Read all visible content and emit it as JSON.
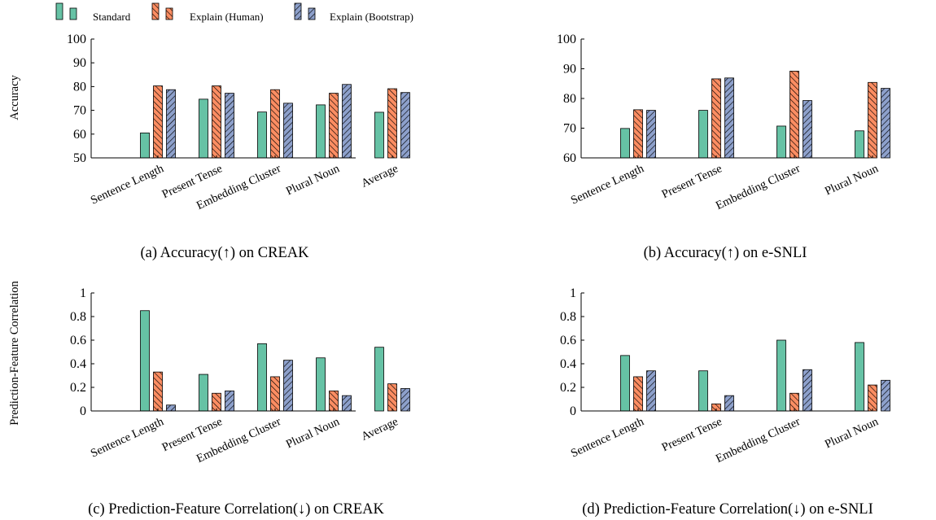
{
  "legend": [
    {
      "label": "Standard",
      "key": "standard"
    },
    {
      "label": "Explain (Human)",
      "key": "human"
    },
    {
      "label": "Explain (Bootstrap)",
      "key": "bootstrap"
    }
  ],
  "colors": {
    "standard": "#66c2a5",
    "human": "#fc8d62",
    "bootstrap": "#8da0cb",
    "outline": "#000000"
  },
  "y_labels": {
    "top": "Accuracy",
    "bottom": "Prediction-Feature Correlation"
  },
  "chart_data": [
    {
      "type": "bar",
      "caption": "(a) Accuracy(↑) on CREAK",
      "categories": [
        "Sentence Length",
        "Present Tense",
        "Embedding Cluster",
        "Plural Noun",
        "Average"
      ],
      "series": [
        {
          "name": "Standard",
          "values": [
            60.5,
            74.7,
            69.3,
            72.3,
            69.2
          ]
        },
        {
          "name": "Explain (Human)",
          "values": [
            80.3,
            80.3,
            78.7,
            77.2,
            79.1
          ]
        },
        {
          "name": "Explain (Bootstrap)",
          "values": [
            78.7,
            77.2,
            73.0,
            80.9,
            77.5
          ]
        }
      ],
      "ylim": [
        50,
        100
      ],
      "yticks": [
        50,
        60,
        70,
        80,
        90,
        100
      ],
      "ytick_labels": [
        "50",
        "60",
        "70",
        "80",
        "90",
        "100"
      ],
      "ylabel": "Accuracy"
    },
    {
      "type": "bar",
      "caption": "(b) Accuracy(↑) on e-SNLI",
      "categories": [
        "Sentence Length",
        "Present Tense",
        "Embedding Cluster",
        "Plural Noun"
      ],
      "series": [
        {
          "name": "Standard",
          "values": [
            69.9,
            76.0,
            70.7,
            69.1
          ]
        },
        {
          "name": "Explain (Human)",
          "values": [
            76.2,
            86.6,
            89.2,
            85.4
          ]
        },
        {
          "name": "Explain (Bootstrap)",
          "values": [
            76.0,
            86.9,
            79.3,
            83.4
          ]
        }
      ],
      "ylim": [
        60,
        100
      ],
      "yticks": [
        60,
        70,
        80,
        90,
        100
      ],
      "ytick_labels": [
        "60",
        "70",
        "80",
        "90",
        "100"
      ]
    },
    {
      "type": "bar",
      "caption": "(c) Prediction-Feature Correlation(↓) on CREAK",
      "categories": [
        "Sentence Length",
        "Present Tense",
        "Embedding Cluster",
        "Plural Noun",
        "Average"
      ],
      "series": [
        {
          "name": "Standard",
          "values": [
            0.85,
            0.31,
            0.57,
            0.45,
            0.54
          ]
        },
        {
          "name": "Explain (Human)",
          "values": [
            0.33,
            0.15,
            0.29,
            0.17,
            0.23
          ]
        },
        {
          "name": "Explain (Bootstrap)",
          "values": [
            0.05,
            0.17,
            0.43,
            0.13,
            0.19
          ]
        }
      ],
      "ylim": [
        0,
        1
      ],
      "yticks": [
        0,
        0.2,
        0.4,
        0.6,
        0.8,
        1
      ],
      "ytick_labels": [
        "0",
        "0.2",
        "0.4",
        "0.6",
        "0.8",
        "1"
      ],
      "ylabel": "Prediction-Feature Correlation"
    },
    {
      "type": "bar",
      "caption": "(d) Prediction-Feature Correlation(↓) on e-SNLI",
      "categories": [
        "Sentence Length",
        "Present Tense",
        "Embedding Cluster",
        "Plural Noun"
      ],
      "series": [
        {
          "name": "Standard",
          "values": [
            0.47,
            0.34,
            0.6,
            0.58
          ]
        },
        {
          "name": "Explain (Human)",
          "values": [
            0.29,
            0.06,
            0.15,
            0.22
          ]
        },
        {
          "name": "Explain (Bootstrap)",
          "values": [
            0.34,
            0.13,
            0.35,
            0.26
          ]
        }
      ],
      "ylim": [
        0,
        1
      ],
      "yticks": [
        0,
        0.2,
        0.4,
        0.6,
        0.8,
        1
      ],
      "ytick_labels": [
        "0",
        "0.2",
        "0.4",
        "0.6",
        "0.8",
        "1"
      ]
    }
  ]
}
